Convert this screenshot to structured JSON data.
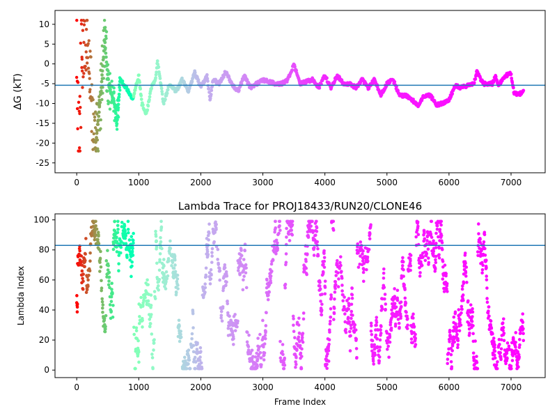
{
  "chart_data": [
    {
      "type": "scatter",
      "title": "",
      "xlabel": "",
      "ylabel": "ΔG (kT)",
      "xlim": [
        -350,
        7550
      ],
      "ylim": [
        -27.5,
        13.5
      ],
      "xticks": [
        0,
        1000,
        2000,
        3000,
        4000,
        5000,
        6000,
        7000
      ],
      "yticks": [
        -25,
        -20,
        -15,
        -10,
        -5,
        0,
        5,
        10
      ],
      "reference_line": {
        "y": -5.4,
        "color": "#1f77b4"
      },
      "colormap": "rainbow (reversed, early frames red → late frames violet)",
      "series_trend": [
        [
          0,
          10
        ],
        [
          20,
          -16
        ],
        [
          50,
          -21
        ],
        [
          80,
          8
        ],
        [
          120,
          -2
        ],
        [
          180,
          6
        ],
        [
          220,
          -6
        ],
        [
          300,
          -21
        ],
        [
          380,
          -9
        ],
        [
          450,
          6
        ],
        [
          520,
          -6
        ],
        [
          600,
          -9
        ],
        [
          650,
          -15
        ],
        [
          700,
          -4
        ],
        [
          800,
          -6
        ],
        [
          900,
          -9
        ],
        [
          1000,
          -3
        ],
        [
          1050,
          -10
        ],
        [
          1120,
          -13
        ],
        [
          1200,
          -6
        ],
        [
          1270,
          -4
        ],
        [
          1300,
          1
        ],
        [
          1400,
          -10
        ],
        [
          1500,
          -5
        ],
        [
          1600,
          -7
        ],
        [
          1700,
          -4
        ],
        [
          1800,
          -7
        ],
        [
          1900,
          -2
        ],
        [
          2000,
          -6
        ],
        [
          2100,
          -3
        ],
        [
          2150,
          -9
        ],
        [
          2200,
          -4
        ],
        [
          2300,
          -5
        ],
        [
          2400,
          -2
        ],
        [
          2500,
          -5
        ],
        [
          2600,
          -7
        ],
        [
          2700,
          -3
        ],
        [
          2800,
          -6
        ],
        [
          2900,
          -5
        ],
        [
          3000,
          -4
        ],
        [
          3200,
          -5
        ],
        [
          3300,
          -5
        ],
        [
          3400,
          -4
        ],
        [
          3500,
          -0.2
        ],
        [
          3600,
          -5
        ],
        [
          3800,
          -4
        ],
        [
          3900,
          -6
        ],
        [
          4000,
          -3
        ],
        [
          4100,
          -6
        ],
        [
          4200,
          -3
        ],
        [
          4300,
          -5
        ],
        [
          4400,
          -5
        ],
        [
          4500,
          -6
        ],
        [
          4600,
          -4
        ],
        [
          4700,
          -6
        ],
        [
          4800,
          -4
        ],
        [
          4900,
          -8
        ],
        [
          5000,
          -5
        ],
        [
          5100,
          -4
        ],
        [
          5200,
          -8
        ],
        [
          5300,
          -8
        ],
        [
          5400,
          -9
        ],
        [
          5500,
          -10.5
        ],
        [
          5600,
          -8
        ],
        [
          5700,
          -8
        ],
        [
          5800,
          -10.3
        ],
        [
          5900,
          -10
        ],
        [
          6000,
          -9
        ],
        [
          6100,
          -5.5
        ],
        [
          6200,
          -6
        ],
        [
          6300,
          -5.5
        ],
        [
          6400,
          -5
        ],
        [
          6450,
          -2
        ],
        [
          6550,
          -5
        ],
        [
          6700,
          -5
        ],
        [
          6750,
          -3
        ],
        [
          6800,
          -5.5
        ],
        [
          6900,
          -3
        ],
        [
          7000,
          -2.5
        ],
        [
          7050,
          -7.5
        ],
        [
          7150,
          -7.5
        ],
        [
          7200,
          -7
        ]
      ]
    },
    {
      "type": "scatter",
      "title": "Lambda Trace for PROJ18433/RUN20/CLONE46",
      "xlabel": "Frame Index",
      "ylabel": "Lambda Index",
      "xlim": [
        -350,
        7550
      ],
      "ylim": [
        -5,
        104
      ],
      "xticks": [
        0,
        1000,
        2000,
        3000,
        4000,
        5000,
        6000,
        7000
      ],
      "yticks": [
        0,
        20,
        40,
        60,
        80,
        100
      ],
      "reference_line": {
        "y": 83,
        "color": "#1f77b4"
      },
      "colormap": "rainbow (reversed, early frames red → late frames violet)",
      "frame_range": [
        0,
        7200
      ],
      "lambda_range": [
        1,
        99
      ]
    }
  ]
}
